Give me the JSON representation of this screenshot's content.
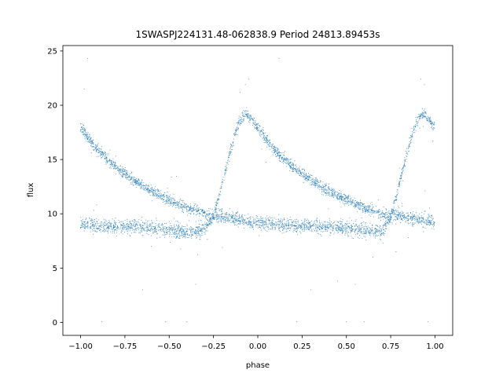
{
  "chart_data": {
    "type": "scatter",
    "title": "1SWASPJ224131.48-062838.9 Period 24813.89453s",
    "xlabel": "phase",
    "ylabel": "flux",
    "xlim": [
      -1.1,
      1.1
    ],
    "ylim": [
      -1.2,
      25.5
    ],
    "xticks": [
      -1.0,
      -0.75,
      -0.5,
      -0.25,
      0.0,
      0.25,
      0.5,
      0.75,
      1.0
    ],
    "xtick_labels": [
      "−1.00",
      "−0.75",
      "−0.50",
      "−0.25",
      "0.00",
      "0.25",
      "0.50",
      "0.75",
      "1.00"
    ],
    "yticks": [
      0,
      5,
      10,
      15,
      20,
      25
    ],
    "ytick_labels": [
      "0",
      "5",
      "10",
      "15",
      "20",
      "25"
    ],
    "marker_color": "#1f77b4",
    "grid": false,
    "series": [
      {
        "description_of_shape": "folded light curve",
        "x": [
          -1.0,
          -0.95,
          -0.9,
          -0.85,
          -0.8,
          -0.75,
          -0.7,
          -0.65,
          -0.6,
          -0.55,
          -0.5,
          -0.45,
          -0.4,
          -0.35,
          -0.3,
          -0.25,
          -0.22,
          -0.19,
          -0.16,
          -0.13,
          -0.1,
          -0.07,
          -0.05,
          -0.03,
          0.0,
          0.05,
          0.1,
          0.15,
          0.2,
          0.25,
          0.3,
          0.35,
          0.4,
          0.45,
          0.5,
          0.55,
          0.6,
          0.65,
          0.7,
          0.75,
          0.78,
          0.81,
          0.84,
          0.87,
          0.9,
          0.93,
          0.95,
          0.97,
          1.0
        ],
        "y": [
          18.0,
          16.8,
          15.8,
          15.0,
          14.3,
          13.7,
          13.1,
          12.6,
          12.1,
          11.7,
          11.3,
          10.9,
          10.6,
          10.3,
          10.0,
          9.7,
          11.5,
          13.5,
          15.5,
          17.3,
          18.6,
          19.2,
          19.0,
          18.6,
          18.0,
          16.8,
          15.8,
          15.0,
          14.3,
          13.7,
          13.1,
          12.6,
          12.1,
          11.7,
          11.3,
          10.9,
          10.6,
          10.3,
          10.0,
          9.7,
          11.5,
          13.5,
          15.5,
          17.3,
          18.6,
          19.2,
          19.0,
          18.6,
          18.0
        ]
      },
      {
        "description_of_shape": "lower branch",
        "x": [
          -1.0,
          -0.9,
          -0.8,
          -0.7,
          -0.6,
          -0.5,
          -0.4,
          -0.3,
          -0.25,
          -0.2,
          -0.1,
          0.0,
          0.1,
          0.2,
          0.3,
          0.4,
          0.5,
          0.6,
          0.7,
          0.75,
          0.8,
          0.9,
          1.0
        ],
        "y": [
          9.0,
          8.9,
          8.8,
          8.8,
          8.7,
          8.5,
          8.3,
          8.6,
          9.8,
          9.8,
          9.5,
          9.2,
          9.0,
          8.9,
          8.8,
          8.8,
          8.7,
          8.5,
          8.3,
          9.8,
          9.8,
          9.5,
          9.2
        ]
      },
      {
        "description_of_shape": "outliers",
        "x": [
          -0.96,
          -0.88,
          -0.65,
          -0.52,
          -0.4,
          -0.35,
          -0.05,
          -0.07,
          -0.1,
          0.12,
          0.22,
          0.5,
          0.55,
          0.6,
          0.78,
          0.92,
          0.94,
          0.96,
          -0.98,
          0.45,
          -0.2,
          0.3,
          0.65,
          -0.6,
          0.85
        ],
        "y": [
          24.3,
          0.05,
          3.0,
          0.05,
          0.05,
          3.5,
          22.4,
          21.9,
          21.2,
          24.3,
          0.05,
          0.05,
          3.5,
          0.05,
          6.5,
          22.4,
          21.9,
          0.05,
          21.5,
          3.8,
          6.9,
          3.0,
          6.0,
          7.0,
          7.8
        ]
      }
    ]
  }
}
